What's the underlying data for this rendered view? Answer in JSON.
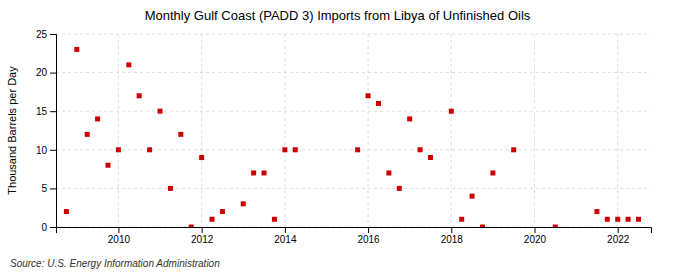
{
  "chart_data": {
    "type": "scatter",
    "title": "Monthly Gulf Coast (PADD 3) Imports from Libya of Unfinished Oils",
    "ylabel": "Thousand Barrels per Day",
    "source": "Source: U.S. Energy Information Administration",
    "color": "#cc0000",
    "marker": "square",
    "grid": true,
    "xlim": [
      2008.5,
      2022.8
    ],
    "xticks": [
      2010,
      2012,
      2014,
      2016,
      2018,
      2020,
      2022
    ],
    "ylim": [
      0,
      25
    ],
    "yticks": [
      0,
      5,
      10,
      15,
      20,
      25
    ],
    "x": [
      2008.75,
      2009.0,
      2009.25,
      2009.5,
      2009.75,
      2010.0,
      2010.25,
      2010.5,
      2010.75,
      2011.0,
      2011.25,
      2011.5,
      2011.75,
      2012.0,
      2012.25,
      2012.5,
      2013.0,
      2013.25,
      2013.5,
      2013.75,
      2014.0,
      2014.25,
      2015.75,
      2016.0,
      2016.25,
      2016.5,
      2016.75,
      2017.0,
      2017.25,
      2017.5,
      2018.0,
      2018.25,
      2018.5,
      2018.75,
      2019.0,
      2019.5,
      2020.5,
      2021.5,
      2021.75,
      2022.0,
      2022.25,
      2022.5
    ],
    "values": [
      2,
      23,
      12,
      14,
      8,
      10,
      21,
      17,
      10,
      15,
      5,
      12,
      0,
      9,
      1,
      2,
      3,
      7,
      7,
      1,
      10,
      10,
      10,
      17,
      16,
      7,
      5,
      14,
      10,
      9,
      15,
      1,
      4,
      0,
      7,
      10,
      0,
      2,
      1,
      1,
      1,
      1
    ]
  }
}
